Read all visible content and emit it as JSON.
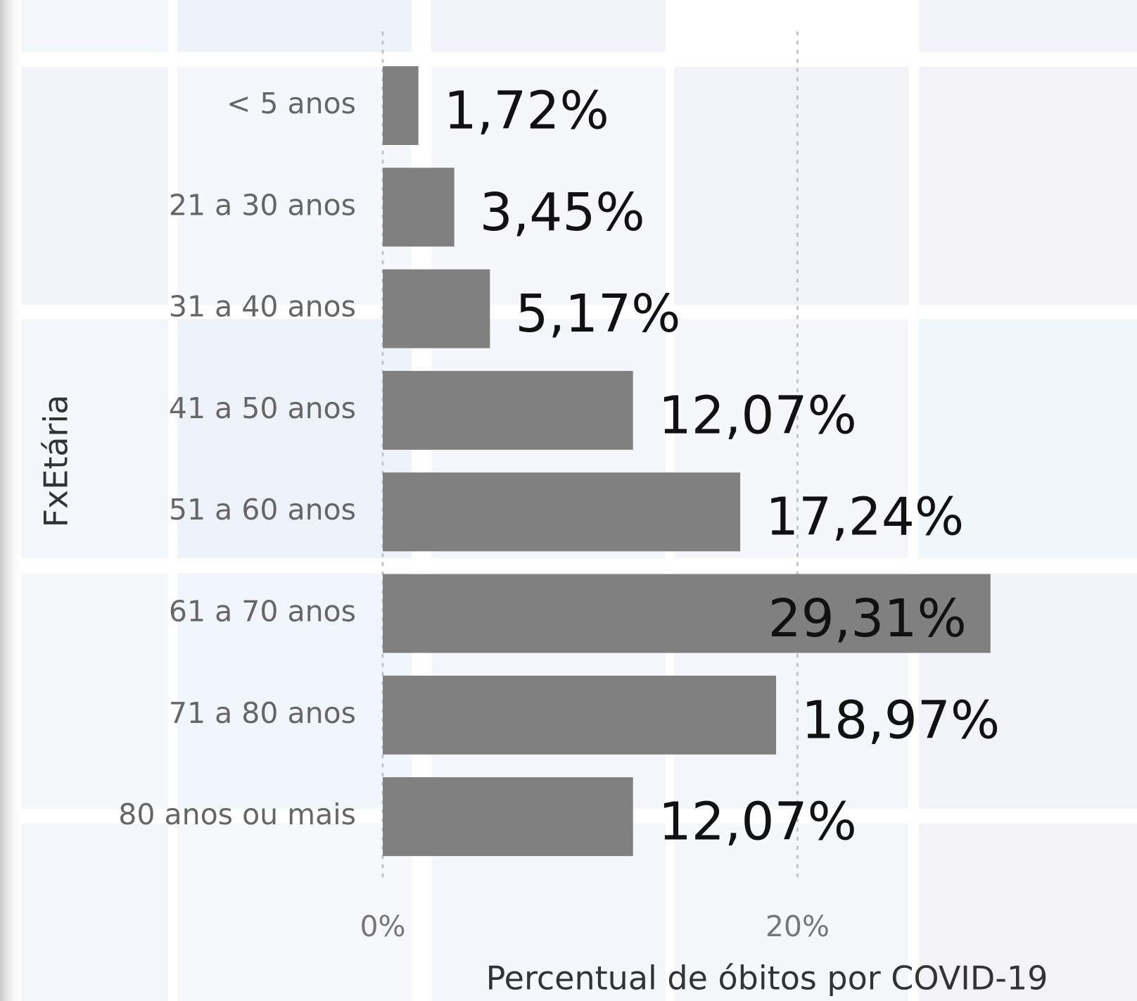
{
  "chart_data": {
    "type": "bar",
    "orientation": "horizontal",
    "x_label": "Percentual de óbitos por COVID-19",
    "y_label": "FxEtária",
    "categories": [
      "< 5 anos",
      "21 a 30 anos",
      "31 a 40 anos",
      "41 a 50 anos",
      "51 a 60 anos",
      "61 a 70 anos",
      "71 a 80 anos",
      "80 anos ou mais"
    ],
    "values": [
      1.72,
      3.45,
      5.17,
      12.07,
      17.24,
      29.31,
      18.97,
      12.07
    ],
    "value_labels": [
      "1,72%",
      "3,45%",
      "5,17%",
      "12,07%",
      "17,24%",
      "29,31%",
      "18,97%",
      "12,07%"
    ],
    "color": "#808080",
    "xlim": [
      0,
      30
    ],
    "xticks": [
      {
        "value": 0,
        "label": "0%"
      },
      {
        "value": 20,
        "label": "20%"
      }
    ],
    "grid": true
  }
}
